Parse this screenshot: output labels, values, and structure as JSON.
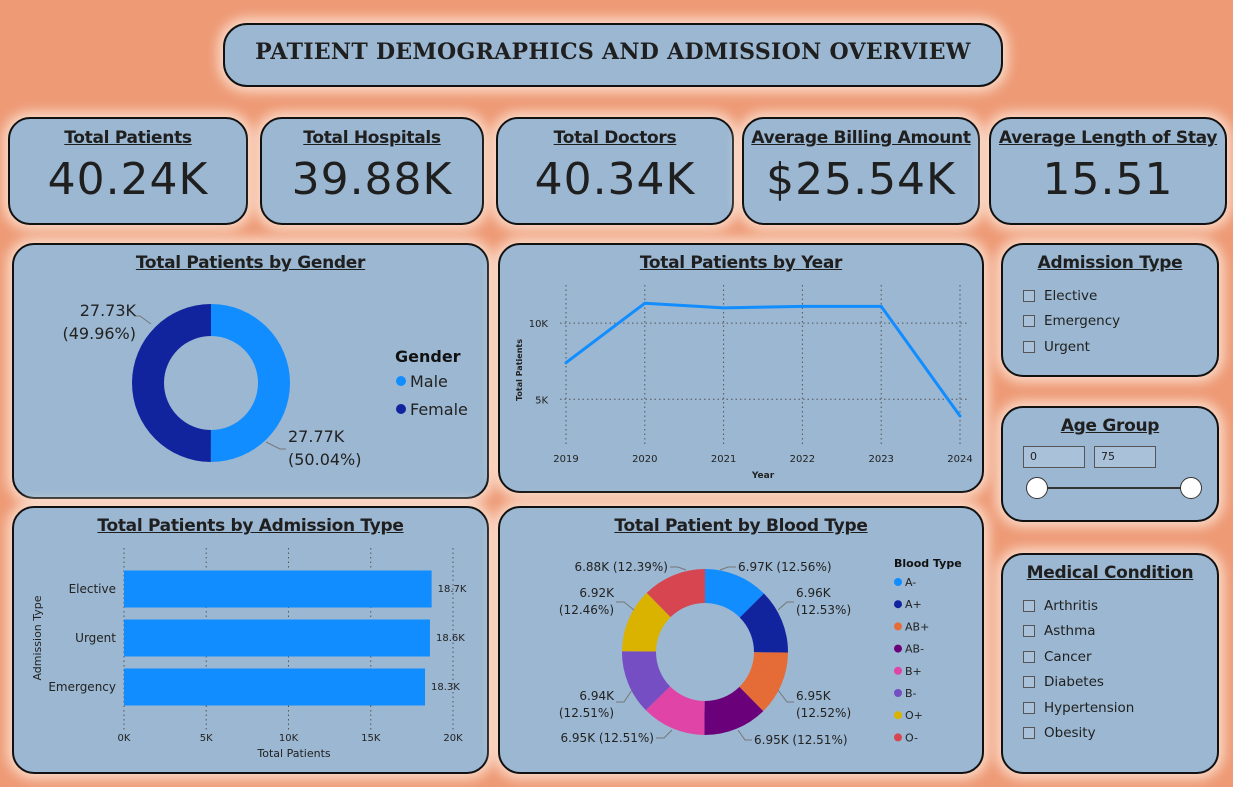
{
  "title": "PATIENT DEMOGRAPHICS AND ADMISSION OVERVIEW",
  "kpis": [
    {
      "label": "Total Patients",
      "value": "40.24K"
    },
    {
      "label": "Total Hospitals",
      "value": "39.88K"
    },
    {
      "label": "Total Doctors",
      "value": "40.34K"
    },
    {
      "label": "Average Billing Amount",
      "value": "$25.54K"
    },
    {
      "label": "Average Length of Stay",
      "value": "15.51"
    }
  ],
  "slicers": {
    "admission_type": {
      "title": "Admission Type",
      "options": [
        "Elective",
        "Emergency",
        "Urgent"
      ]
    },
    "age_group": {
      "title": "Age Group",
      "min": "0",
      "max": "75",
      "range": [
        0,
        75
      ]
    },
    "medical_condition": {
      "title": "Medical Condition",
      "options": [
        "Arthritis",
        "Asthma",
        "Cancer",
        "Diabetes",
        "Hypertension",
        "Obesity"
      ]
    }
  },
  "colors": {
    "background": "#EE9A75",
    "card": "#9BB7D1",
    "male": "#118DFF",
    "female": "#12239E"
  },
  "chart_data": [
    {
      "type": "pie",
      "title": "Total Patients by Gender",
      "legend_title": "Gender",
      "legend_position": "right",
      "donut": true,
      "slices": [
        {
          "name": "Male",
          "value": 27.77,
          "label": "27.77K",
          "pct": "(50.04%)",
          "color": "#118DFF"
        },
        {
          "name": "Female",
          "value": 27.73,
          "label": "27.73K",
          "pct": "(49.96%)",
          "color": "#12239E"
        }
      ]
    },
    {
      "type": "line",
      "title": "Total Patients by Year",
      "xlabel": "Year",
      "ylabel": "Total Patients",
      "x": [
        "2019",
        "2020",
        "2021",
        "2022",
        "2023",
        "2024"
      ],
      "values": [
        7400,
        11300,
        11000,
        11100,
        11100,
        3900
      ],
      "yticks": [
        "5K",
        "10K"
      ],
      "ytick_values": [
        5000,
        10000
      ],
      "ylim": [
        2000,
        12500
      ],
      "grid": true,
      "color": "#118DFF"
    },
    {
      "type": "bar",
      "orientation": "horizontal",
      "title": "Total Patients by Admission Type",
      "xlabel": "Total Patients",
      "ylabel": "Admission Type",
      "categories": [
        "Elective",
        "Urgent",
        "Emergency"
      ],
      "values": [
        18.7,
        18.6,
        18.3
      ],
      "value_labels": [
        "18.7K",
        "18.6K",
        "18.3K"
      ],
      "xticks": [
        "0K",
        "5K",
        "10K",
        "15K",
        "20K"
      ],
      "xlim": [
        0,
        20
      ],
      "grid": true,
      "color": "#118DFF"
    },
    {
      "type": "pie",
      "title": "Total Patient by Blood Type",
      "legend_title": "Blood Type",
      "legend_position": "right",
      "donut": true,
      "slices": [
        {
          "name": "A-",
          "value": 12.56,
          "label": "6.97K (12.56%)",
          "color": "#118DFF"
        },
        {
          "name": "A+",
          "value": 12.53,
          "label": "6.96K (12.53%)",
          "color": "#12239E"
        },
        {
          "name": "AB+",
          "value": 12.52,
          "label": "6.95K (12.52%)",
          "color": "#E66C37"
        },
        {
          "name": "AB-",
          "value": 12.51,
          "label": "6.95K (12.51%)",
          "color": "#6B007B"
        },
        {
          "name": "B+",
          "value": 12.51,
          "label": "6.95K (12.51%)",
          "color": "#E044A7"
        },
        {
          "name": "B-",
          "value": 12.51,
          "label": "6.94K (12.51%)",
          "color": "#744EC2"
        },
        {
          "name": "O+",
          "value": 12.46,
          "label": "6.92K (12.46%)",
          "color": "#D9B300"
        },
        {
          "name": "O-",
          "value": 12.39,
          "label": "6.88K (12.39%)",
          "color": "#D64550"
        }
      ]
    }
  ]
}
